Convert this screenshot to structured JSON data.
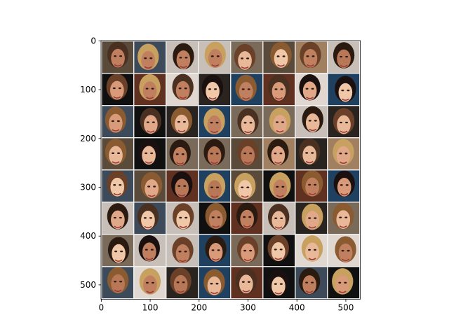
{
  "chart_data": {
    "type": "image",
    "xlim": [
      -0.5,
      529.5
    ],
    "ylim": [
      529.5,
      -0.5
    ],
    "xticks": [
      0,
      100,
      200,
      300,
      400,
      500
    ],
    "yticks": [
      0,
      100,
      200,
      300,
      400,
      500
    ],
    "grid": false
  }
}
